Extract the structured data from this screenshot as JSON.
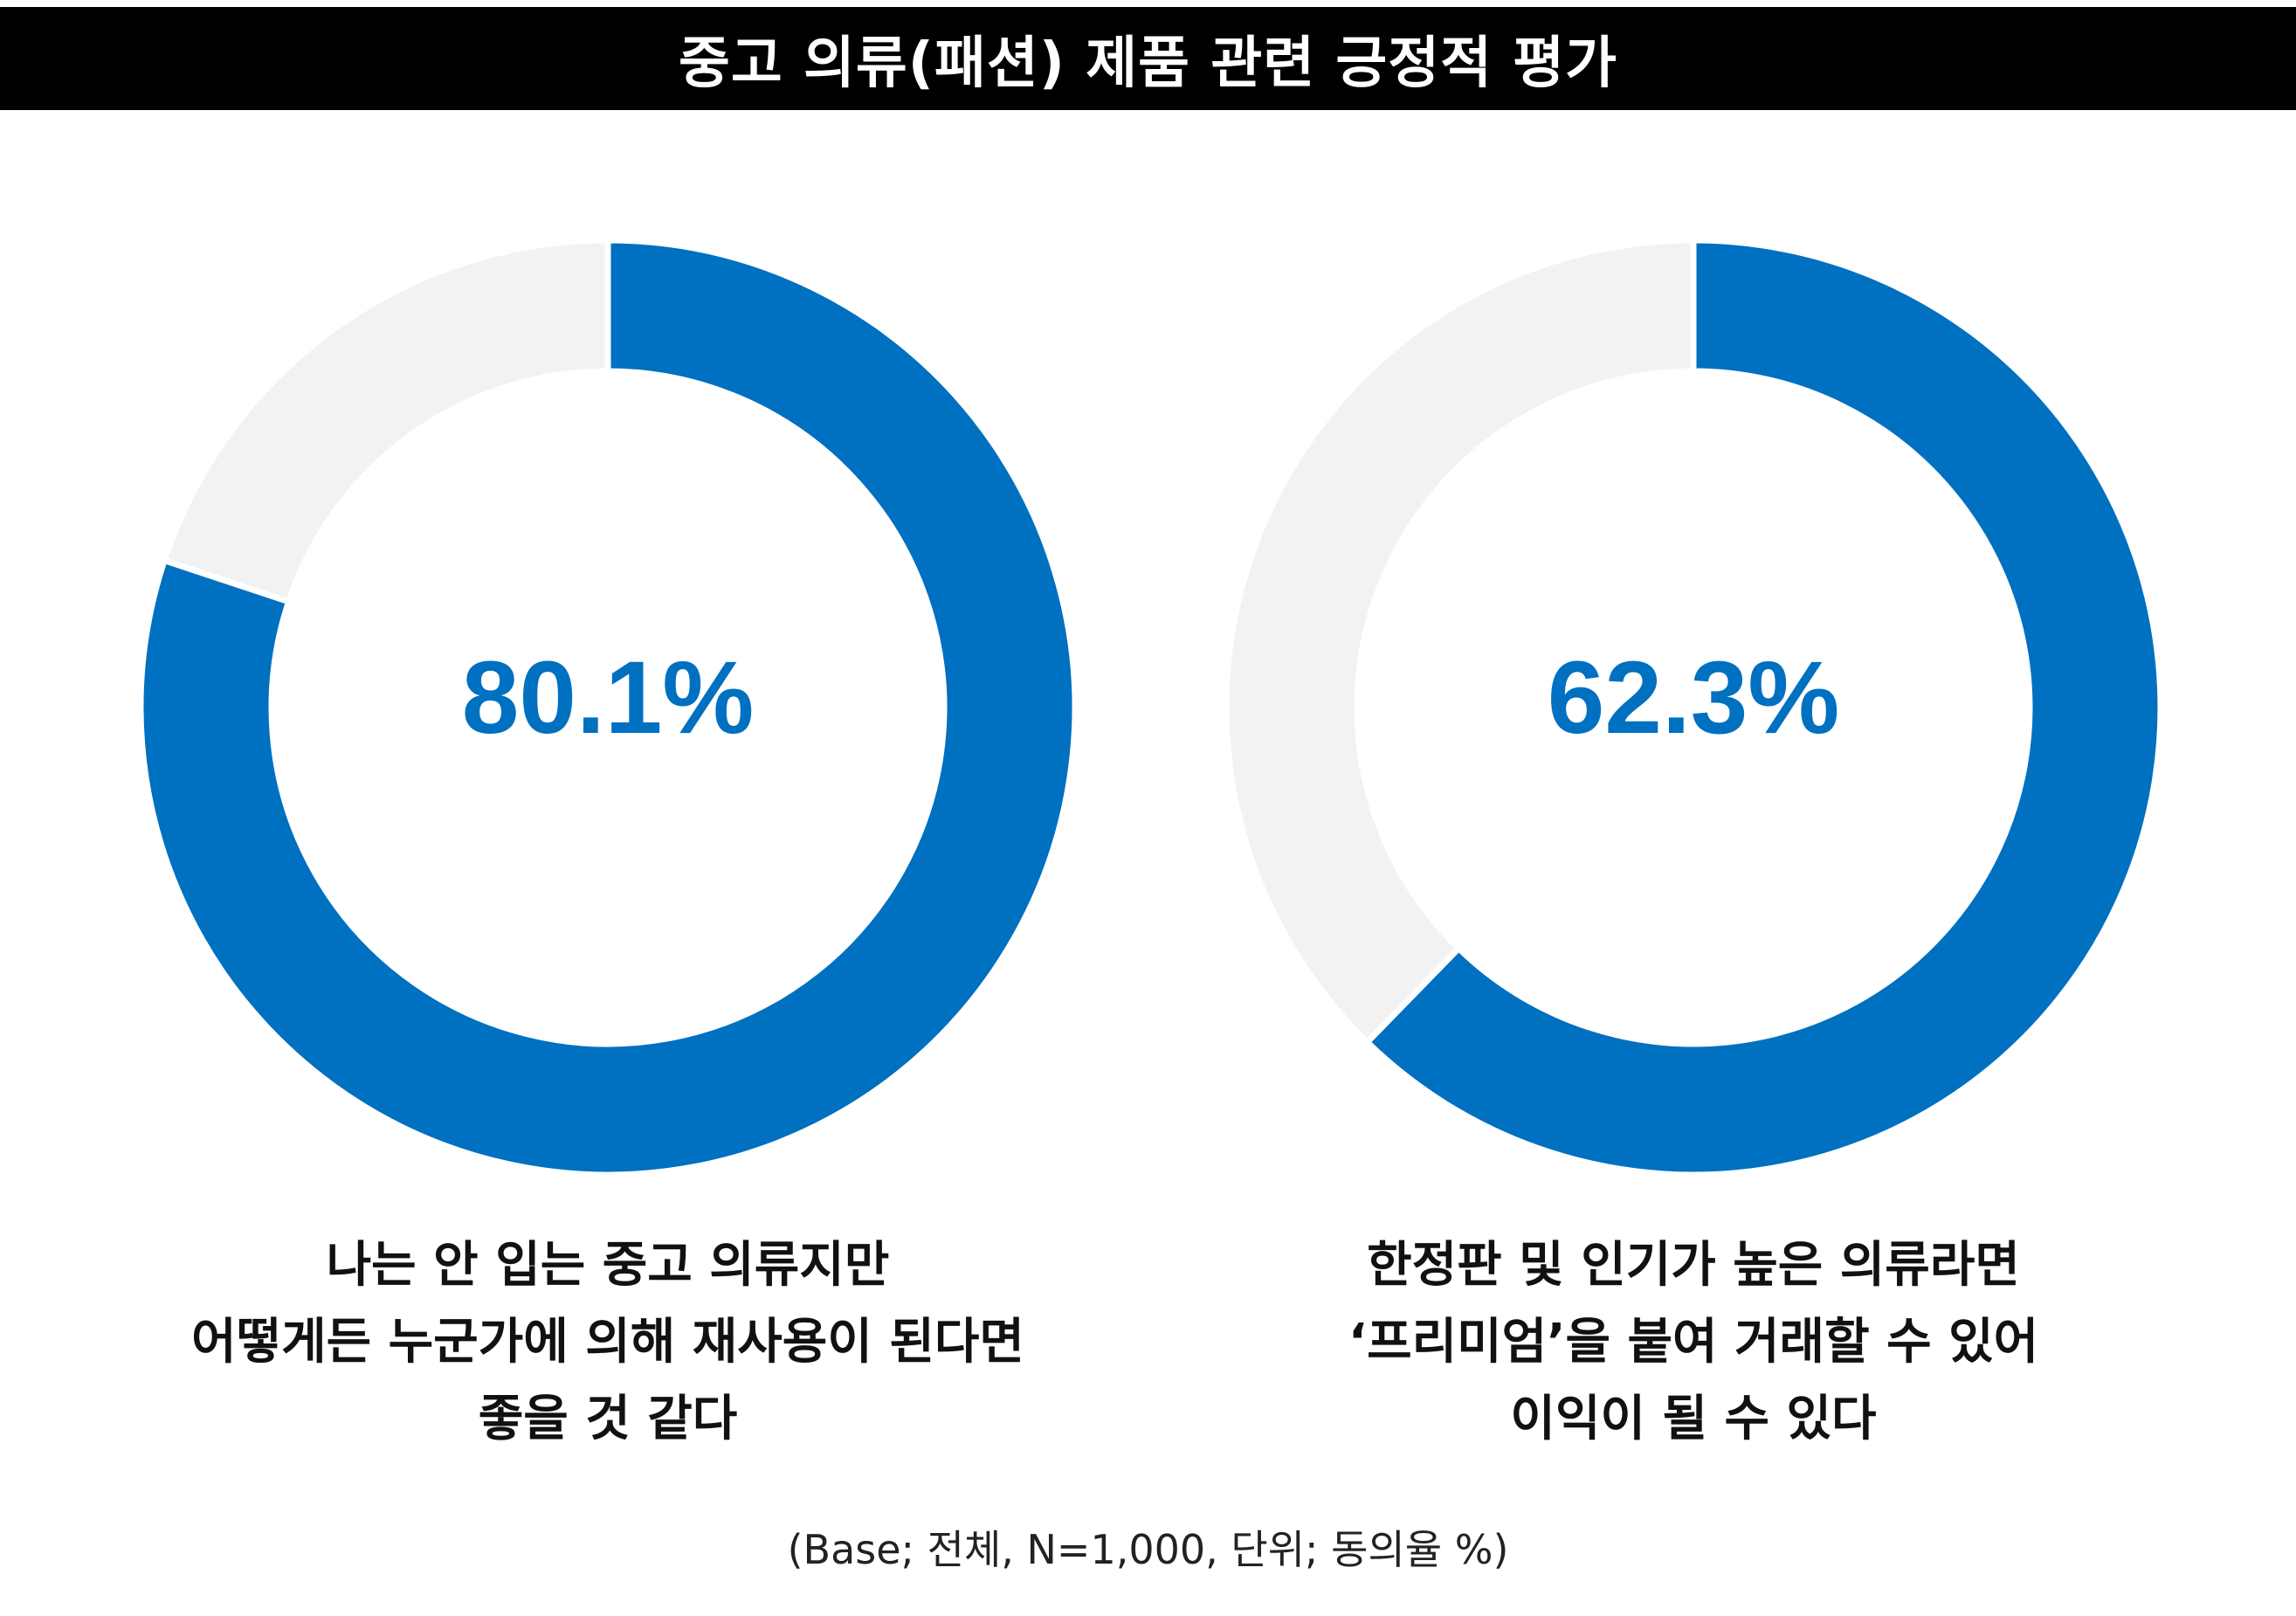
{
  "title": "중고 의류(패션) 제품 관련 긍정적 평가",
  "footnote": "(Base; 전체, N=1,000, 단위; 동의율 %)",
  "colors": {
    "accent": "#0070C0",
    "remainder": "#F2F2F2",
    "title_bg": "#000000",
    "title_text": "#FFFFFF"
  },
  "chart_data": [
    {
      "type": "pie",
      "variant": "donut",
      "value_label": "80.1%",
      "slices": [
        {
          "value": 80.1,
          "color": "#0070C0"
        },
        {
          "value": 19.9,
          "color": "#F2F2F2"
        }
      ],
      "caption_lines": [
        "나는 안 입는 중고 의류지만",
        "어떻게든 누군가에 의해 재사용이 된다면",
        "좋을 것 같다"
      ]
    },
    {
      "type": "pie",
      "variant": "donut",
      "value_label": "62.3%",
      "slices": [
        {
          "value": 62.3,
          "color": "#0070C0"
        },
        {
          "value": 37.7,
          "color": "#F2F2F2"
        }
      ],
      "caption_lines": [
        "한정판 및 인기가 높은 의류라면",
        "‘프리미엄’을 붙여 거래할 수 있어",
        "이익이 될 수 있다"
      ]
    }
  ]
}
